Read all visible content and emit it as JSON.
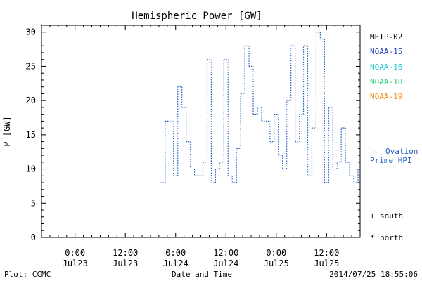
{
  "chart_data": {
    "type": "line",
    "title": "Hemispheric Power [GW]",
    "xlabel": "Date and Time",
    "ylabel": "P [GW]",
    "ylim": [
      0,
      31
    ],
    "yticks": [
      0,
      5,
      10,
      15,
      20,
      25,
      30
    ],
    "xlim": [
      "2014-07-22T16:00",
      "2014-07-25T20:00"
    ],
    "xticks": [
      {
        "t": "2014-07-23T00:00",
        "label": [
          "0:00",
          "Jul23"
        ]
      },
      {
        "t": "2014-07-23T12:00",
        "label": [
          "12:00",
          "Jul23"
        ]
      },
      {
        "t": "2014-07-24T00:00",
        "label": [
          "0:00",
          "Jul24"
        ]
      },
      {
        "t": "2014-07-24T12:00",
        "label": [
          "12:00",
          "Jul24"
        ]
      },
      {
        "t": "2014-07-25T00:00",
        "label": [
          "0:00",
          "Jul25"
        ]
      },
      {
        "t": "2014-07-25T12:00",
        "label": [
          "12:00",
          "Jul25"
        ]
      }
    ],
    "grid": false,
    "legend": {
      "placement": "right",
      "entries": [
        {
          "label": "METP-02",
          "color": "#000000"
        },
        {
          "label": "NOAA-15",
          "color": "#1f3fbf"
        },
        {
          "label": "NOAA-16",
          "color": "#20c8d8"
        },
        {
          "label": "NOAA-18",
          "color": "#20d070"
        },
        {
          "label": "NOAA-19",
          "color": "#f09010"
        }
      ],
      "ovation_marker": "—",
      "ovation_line1": "Ovation",
      "ovation_line2": "Prime HPI",
      "ovation_color": "#1f5fbf",
      "south_symbol": "+",
      "south_label": "south",
      "north_symbol": "*",
      "north_label": "north"
    },
    "series": [
      {
        "name": "Ovation Prime HPI",
        "color": "#1f5fbf",
        "style": "step-dotted",
        "x": [
          "2014-07-23T20:30",
          "2014-07-23T21:30",
          "2014-07-23T23:30",
          "2014-07-24T00:30",
          "2014-07-24T01:30",
          "2014-07-24T02:30",
          "2014-07-24T03:30",
          "2014-07-24T04:30",
          "2014-07-24T06:30",
          "2014-07-24T07:30",
          "2014-07-24T08:30",
          "2014-07-24T09:30",
          "2014-07-24T10:30",
          "2014-07-24T11:30",
          "2014-07-24T12:30",
          "2014-07-24T13:30",
          "2014-07-24T14:30",
          "2014-07-24T15:30",
          "2014-07-24T16:30",
          "2014-07-24T17:30",
          "2014-07-24T18:30",
          "2014-07-24T19:30",
          "2014-07-24T20:30",
          "2014-07-24T22:30",
          "2014-07-24T23:30",
          "2014-07-25T00:30",
          "2014-07-25T01:30",
          "2014-07-25T02:30",
          "2014-07-25T03:30",
          "2014-07-25T04:30",
          "2014-07-25T05:30",
          "2014-07-25T06:30",
          "2014-07-25T07:30",
          "2014-07-25T08:30",
          "2014-07-25T09:30",
          "2014-07-25T10:30",
          "2014-07-25T11:30",
          "2014-07-25T12:30",
          "2014-07-25T13:30",
          "2014-07-25T14:30",
          "2014-07-25T15:30",
          "2014-07-25T16:30",
          "2014-07-25T17:30",
          "2014-07-25T18:30",
          "2014-07-25T19:30"
        ],
        "values": [
          8,
          17,
          9,
          22,
          19,
          14,
          10,
          9,
          11,
          26,
          8,
          10,
          11,
          26,
          9,
          8,
          13,
          21,
          28,
          25,
          18,
          19,
          17,
          14,
          18,
          12,
          10,
          20,
          28,
          14,
          18,
          28,
          9,
          16,
          30,
          29,
          8,
          19,
          10,
          11,
          16,
          11,
          9,
          8,
          10
        ]
      }
    ]
  },
  "footer": {
    "plot_credit": "Plot: CCMC",
    "timestamp": "2014/07/25 18:55:06"
  }
}
